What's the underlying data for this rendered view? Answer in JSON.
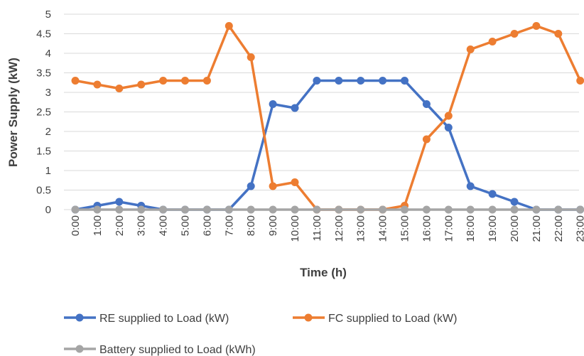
{
  "chart_data": {
    "type": "line",
    "title": "",
    "xlabel": "Time (h)",
    "ylabel": "Power Supply (kW)",
    "ylim": [
      0,
      5
    ],
    "yticks": [
      "0",
      "0.5",
      "1",
      "1.5",
      "2",
      "2.5",
      "3",
      "3.5",
      "4",
      "4.5",
      "5"
    ],
    "categories": [
      "0:00",
      "1:00",
      "2:00",
      "3:00",
      "4:00",
      "5:00",
      "6:00",
      "7:00",
      "8:00",
      "9:00",
      "10:00",
      "11:00",
      "12:00",
      "13:00",
      "14:00",
      "15:00",
      "16:00",
      "17:00",
      "18:00",
      "19:00",
      "20:00",
      "21:00",
      "22:00",
      "23:00"
    ],
    "grid": true,
    "legend_position": "bottom",
    "series": [
      {
        "name": "RE supplied to Load (kW)",
        "color": "#4472C4",
        "values": [
          0,
          0.1,
          0.2,
          0.1,
          0,
          0,
          0,
          0,
          0.6,
          2.7,
          2.6,
          3.3,
          3.3,
          3.3,
          3.3,
          3.3,
          2.7,
          2.1,
          0.6,
          0.4,
          0.2,
          0,
          0,
          0
        ]
      },
      {
        "name": "FC supplied to Load (kW)",
        "color": "#ED7D31",
        "values": [
          3.3,
          3.2,
          3.1,
          3.2,
          3.3,
          3.3,
          3.3,
          4.7,
          3.9,
          0.6,
          0.7,
          0,
          0,
          0,
          0,
          0.1,
          1.8,
          2.4,
          4.1,
          4.3,
          4.5,
          4.7,
          4.5,
          3.3
        ]
      },
      {
        "name": "Battery supplied to Load (kWh)",
        "color": "#A5A5A5",
        "values": [
          0,
          0,
          0,
          0,
          0,
          0,
          0,
          0,
          0,
          0,
          0,
          0,
          0,
          0,
          0,
          0,
          0,
          0,
          0,
          0,
          0,
          0,
          0,
          0
        ]
      }
    ]
  }
}
